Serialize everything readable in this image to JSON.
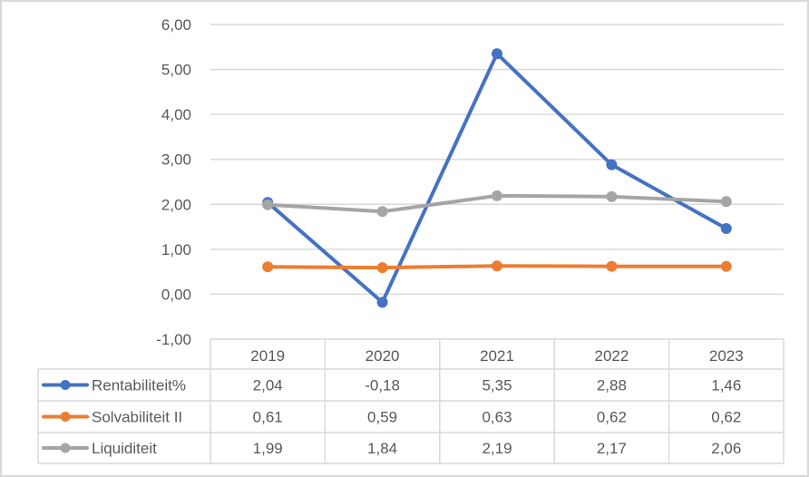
{
  "chart_data": {
    "type": "line",
    "title": "",
    "xlabel": "",
    "ylabel": "",
    "ylim": [
      -1,
      6
    ],
    "yticks": [
      "6,00",
      "5,00",
      "4,00",
      "3,00",
      "2,00",
      "1,00",
      "0,00",
      "-1,00"
    ],
    "grid": true,
    "legend_position": "data-table",
    "categories": [
      "2019",
      "2020",
      "2021",
      "2022",
      "2023"
    ],
    "series": [
      {
        "name": "Rentabiliteit%",
        "color": "#4472c4",
        "values": [
          2.04,
          -0.18,
          5.35,
          2.88,
          1.46
        ],
        "labels": [
          "2,04",
          "-0,18",
          "5,35",
          "2,88",
          "1,46"
        ]
      },
      {
        "name": "Solvabiliteit II",
        "color": "#ed7d31",
        "values": [
          0.61,
          0.59,
          0.63,
          0.62,
          0.62
        ],
        "labels": [
          "0,61",
          "0,59",
          "0,63",
          "0,62",
          "0,62"
        ]
      },
      {
        "name": "Liquiditeit",
        "color": "#a5a5a5",
        "values": [
          1.99,
          1.84,
          2.19,
          2.17,
          2.06
        ],
        "labels": [
          "1,99",
          "1,84",
          "2,19",
          "2,17",
          "2,06"
        ]
      }
    ]
  }
}
